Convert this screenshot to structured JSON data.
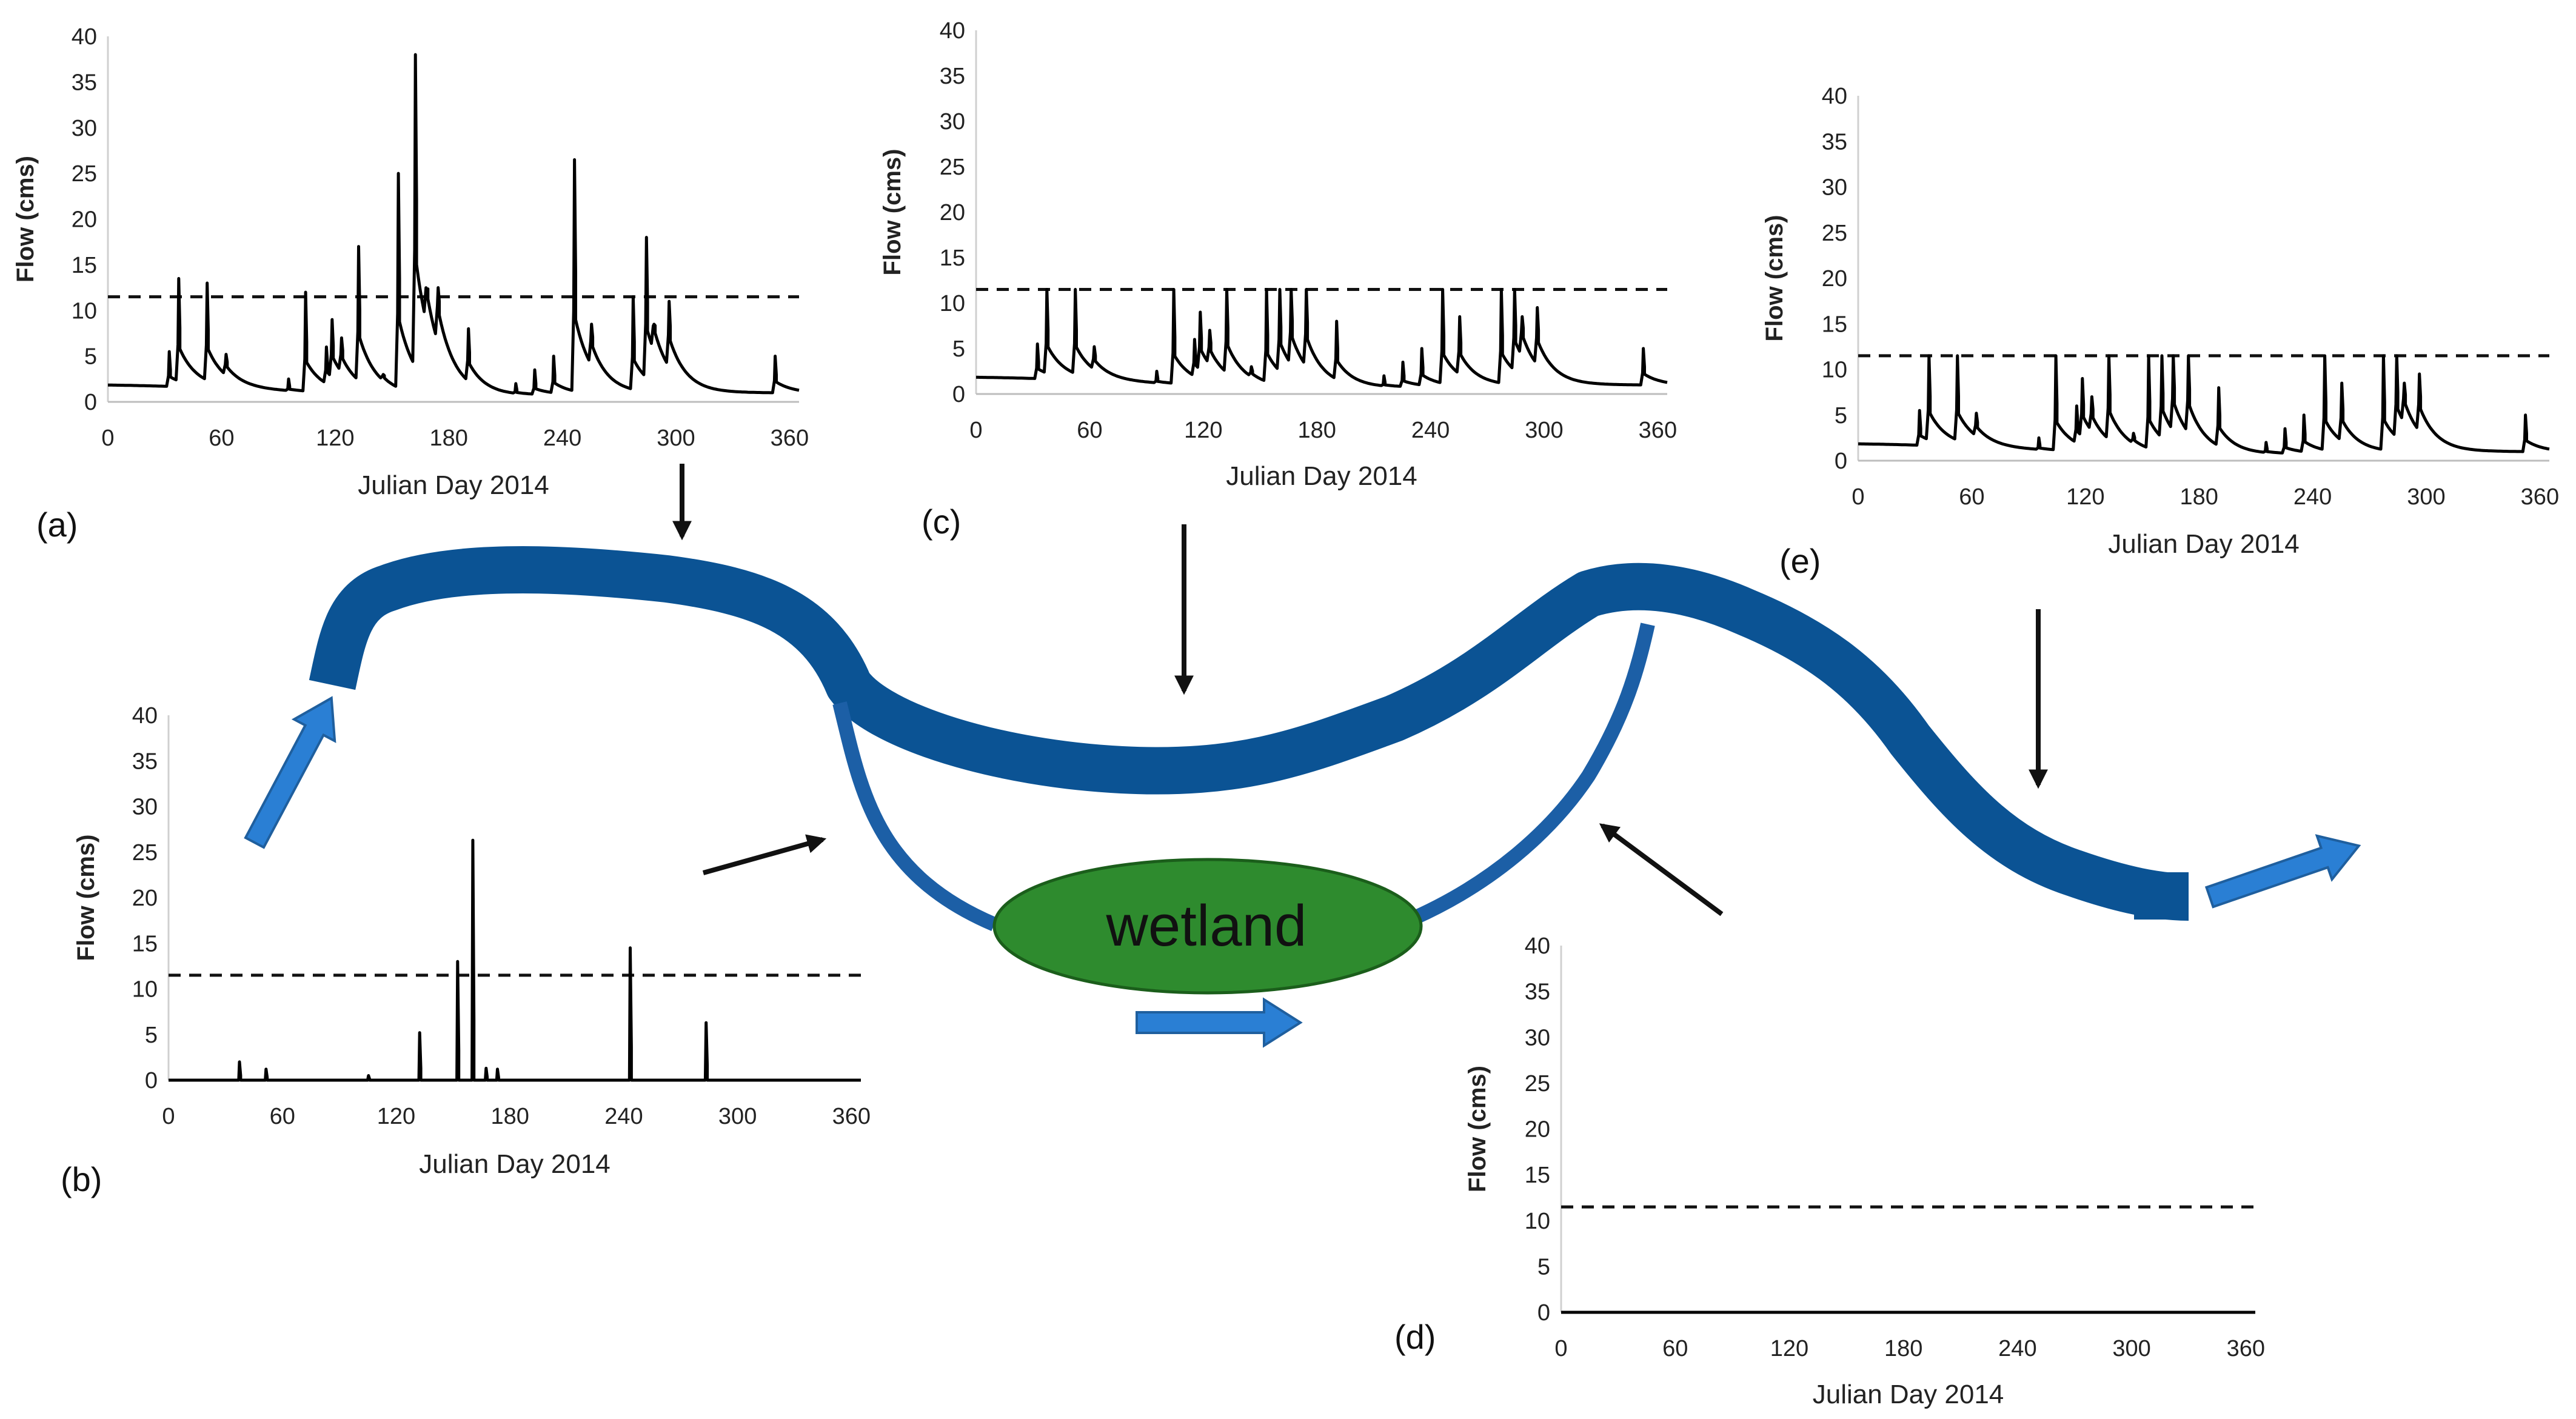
{
  "diagram": {
    "wetland_label": "wetland",
    "colors": {
      "river": "#0b5394",
      "river_edge": "#0a4a85",
      "channel": "#1c5fa6",
      "wetland_fill": "#2e8b2e",
      "wetland_stroke": "#1b5e1b",
      "flow_arrow": "#2a7fd4",
      "flow_arrow_edge": "#1f5f9e",
      "pointer_arrow": "#111111"
    }
  },
  "chart_data": [
    {
      "panel": "(a)",
      "type": "line",
      "xlabel": "Julian Day 2014",
      "ylabel": "Flow (cms)",
      "xlim": [
        0,
        365
      ],
      "ylim": [
        0,
        40
      ],
      "xticks": [
        0,
        60,
        120,
        180,
        240,
        300,
        360
      ],
      "yticks": [
        0,
        5,
        10,
        15,
        20,
        25,
        30,
        35,
        40
      ],
      "threshold": 11.5,
      "peaks": [
        [
          32,
          5.5
        ],
        [
          37,
          13.5
        ],
        [
          52,
          13
        ],
        [
          62,
          5.2
        ],
        [
          95,
          2.5
        ],
        [
          104,
          12
        ],
        [
          115,
          6
        ],
        [
          118,
          9
        ],
        [
          123,
          7
        ],
        [
          132,
          17
        ],
        [
          145,
          3
        ],
        [
          153,
          25
        ],
        [
          162,
          38
        ],
        [
          168,
          12
        ],
        [
          174,
          12.5
        ],
        [
          190,
          8
        ],
        [
          215,
          2
        ],
        [
          225,
          3.5
        ],
        [
          235,
          5
        ],
        [
          246,
          26.5
        ],
        [
          255,
          8.5
        ],
        [
          277,
          11.5
        ],
        [
          284,
          18
        ],
        [
          288,
          8.5
        ],
        [
          296,
          11
        ],
        [
          352,
          5
        ]
      ],
      "baseline_start": 2.3,
      "baseline_end": 1.2
    },
    {
      "panel": "(b)",
      "type": "line",
      "xlabel": "Julian Day 2014",
      "ylabel": "Flow (cms)",
      "xlim": [
        0,
        365
      ],
      "ylim": [
        0,
        40
      ],
      "xticks": [
        0,
        60,
        120,
        180,
        240,
        300,
        360
      ],
      "yticks": [
        0,
        5,
        10,
        15,
        20,
        25,
        30,
        35,
        40
      ],
      "threshold": 11.5,
      "peaks": [
        [
          37,
          2
        ],
        [
          51,
          1.2
        ],
        [
          105,
          0.5
        ],
        [
          132,
          5.2
        ],
        [
          152,
          13
        ],
        [
          160,
          26.3
        ],
        [
          167,
          1.3
        ],
        [
          173,
          1.2
        ],
        [
          243,
          14.5
        ],
        [
          283,
          6.3
        ]
      ],
      "baseline_start": 0,
      "baseline_end": 0
    },
    {
      "panel": "(c)",
      "type": "line",
      "xlabel": "Julian Day 2014",
      "ylabel": "Flow (cms)",
      "xlim": [
        0,
        365
      ],
      "ylim": [
        0,
        40
      ],
      "xticks": [
        0,
        60,
        120,
        180,
        240,
        300,
        360
      ],
      "yticks": [
        0,
        5,
        10,
        15,
        20,
        25,
        30,
        35,
        40
      ],
      "threshold": 11.5,
      "peaks": [
        [
          32,
          5.5
        ],
        [
          37,
          11.5
        ],
        [
          52,
          11.5
        ],
        [
          62,
          5.2
        ],
        [
          95,
          2.5
        ],
        [
          104,
          11.5
        ],
        [
          115,
          6
        ],
        [
          118,
          9
        ],
        [
          123,
          7
        ],
        [
          132,
          11.5
        ],
        [
          145,
          3
        ],
        [
          153,
          11.5
        ],
        [
          160,
          11.5
        ],
        [
          166,
          11.5
        ],
        [
          174,
          11.5
        ],
        [
          190,
          8
        ],
        [
          215,
          2
        ],
        [
          225,
          3.5
        ],
        [
          235,
          5
        ],
        [
          246,
          11.5
        ],
        [
          255,
          8.5
        ],
        [
          277,
          11.5
        ],
        [
          284,
          11.5
        ],
        [
          288,
          8.5
        ],
        [
          296,
          9.5
        ],
        [
          352,
          5
        ]
      ],
      "baseline_start": 2.3,
      "baseline_end": 1.2
    },
    {
      "panel": "(d)",
      "type": "line",
      "xlabel": "Julian Day 2014",
      "ylabel": "Flow (cms)",
      "xlim": [
        0,
        365
      ],
      "ylim": [
        0,
        40
      ],
      "xticks": [
        0,
        60,
        120,
        180,
        240,
        300,
        360
      ],
      "yticks": [
        0,
        5,
        10,
        15,
        20,
        25,
        30,
        35,
        40
      ],
      "threshold": 11.5,
      "peaks": [],
      "baseline_start": 0,
      "baseline_end": 0
    },
    {
      "panel": "(e)",
      "type": "line",
      "xlabel": "Julian Day 2014",
      "ylabel": "Flow (cms)",
      "xlim": [
        0,
        365
      ],
      "ylim": [
        0,
        40
      ],
      "xticks": [
        0,
        60,
        120,
        180,
        240,
        300,
        360
      ],
      "yticks": [
        0,
        5,
        10,
        15,
        20,
        25,
        30,
        35,
        40
      ],
      "threshold": 11.5,
      "peaks": [
        [
          32,
          5.5
        ],
        [
          37,
          11.5
        ],
        [
          52,
          11.5
        ],
        [
          62,
          5.2
        ],
        [
          95,
          2.5
        ],
        [
          104,
          11.5
        ],
        [
          115,
          6
        ],
        [
          118,
          9
        ],
        [
          123,
          7
        ],
        [
          132,
          11.5
        ],
        [
          145,
          3
        ],
        [
          153,
          11.5
        ],
        [
          160,
          11.5
        ],
        [
          166,
          11.5
        ],
        [
          174,
          11.5
        ],
        [
          190,
          8
        ],
        [
          215,
          2
        ],
        [
          225,
          3.5
        ],
        [
          235,
          5
        ],
        [
          246,
          11.5
        ],
        [
          255,
          8.5
        ],
        [
          277,
          11.5
        ],
        [
          284,
          11.5
        ],
        [
          288,
          8.5
        ],
        [
          296,
          9.5
        ],
        [
          352,
          5
        ]
      ],
      "baseline_start": 2.3,
      "baseline_end": 1.2
    }
  ]
}
